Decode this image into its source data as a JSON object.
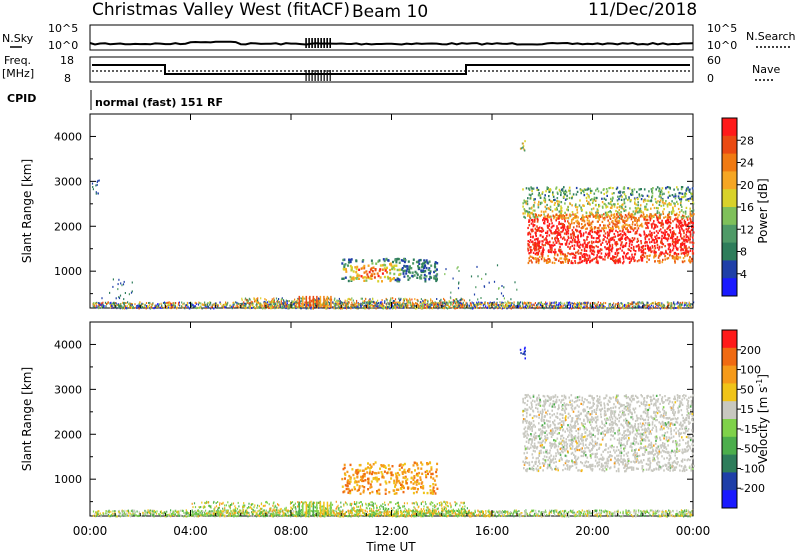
{
  "header": {
    "station": "Christmas Valley West (fitACF)",
    "beam": "Beam 10",
    "date": "11/Dec/2018"
  },
  "top_panels": {
    "nsky_label": "N.Sky",
    "nsearch_label": "N.Search",
    "nsky_ticks": [
      "10^5",
      "10^0"
    ],
    "nsearch_ticks": [
      "10^5",
      "10^0"
    ],
    "freq_label_1": "Freq.",
    "freq_label_2": "[MHz]",
    "freq_ticks": [
      "18",
      "8"
    ],
    "nave_label": "Nave",
    "nave_ticks": [
      "60",
      "0"
    ],
    "cpid_label": "CPID",
    "cpid_text": "normal (fast) 151 RF"
  },
  "colors": {
    "power_scale": [
      "#1a1aff",
      "#1f3fa8",
      "#2e7d5b",
      "#4f9a67",
      "#7fc05a",
      "#d8d22a",
      "#f5a623",
      "#f07a12",
      "#ea4a12",
      "#ff1a1a"
    ],
    "velocity_scale": [
      "#1a1aff",
      "#1f3fa8",
      "#2e7d5b",
      "#4cae4c",
      "#7fd24a",
      "#c8c8c0",
      "#f0c419",
      "#f59a1a",
      "#f06a12",
      "#ff1a1a"
    ]
  },
  "chart_data": [
    {
      "type": "heatmap",
      "name": "power",
      "ylabel": "Slant Range [km]",
      "yticks": [
        "4000",
        "3000",
        "2000",
        "1000"
      ],
      "ylim": [
        180,
        4500
      ],
      "xlim": [
        0,
        24
      ],
      "colorbar_label": "Power [dB]",
      "colorbar_ticks": [
        "28",
        "24",
        "20",
        "16",
        "12",
        "8",
        "4"
      ],
      "regions": [
        {
          "t0": 0.1,
          "t1": 24.0,
          "r0": 200,
          "r1": 450,
          "value": "mixed low power ground scatter"
        },
        {
          "t0": 9.5,
          "t1": 13.8,
          "r0": 700,
          "r1": 1300,
          "value": "8-28 dB patch"
        },
        {
          "t0": 17.2,
          "t1": 24.0,
          "r0": 1200,
          "r1": 2900,
          "value": "16-28 dB band"
        }
      ]
    },
    {
      "type": "heatmap",
      "name": "velocity",
      "ylabel": "Slant Range [km]",
      "yticks": [
        "4000",
        "3000",
        "2000",
        "1000"
      ],
      "ylim": [
        180,
        4500
      ],
      "xlim": [
        0,
        24
      ],
      "colorbar_label": "Velocity [m s",
      "colorbar_label_sup": "-1",
      "colorbar_label_end": "]",
      "colorbar_ticks": [
        "200",
        "100",
        "50",
        "15",
        "-15",
        "-50",
        "-100",
        "-200"
      ],
      "xticks": [
        "00:00",
        "04:00",
        "08:00",
        "12:00",
        "16:00",
        "20:00",
        "00:00"
      ],
      "xlabel": "Time UT"
    }
  ]
}
